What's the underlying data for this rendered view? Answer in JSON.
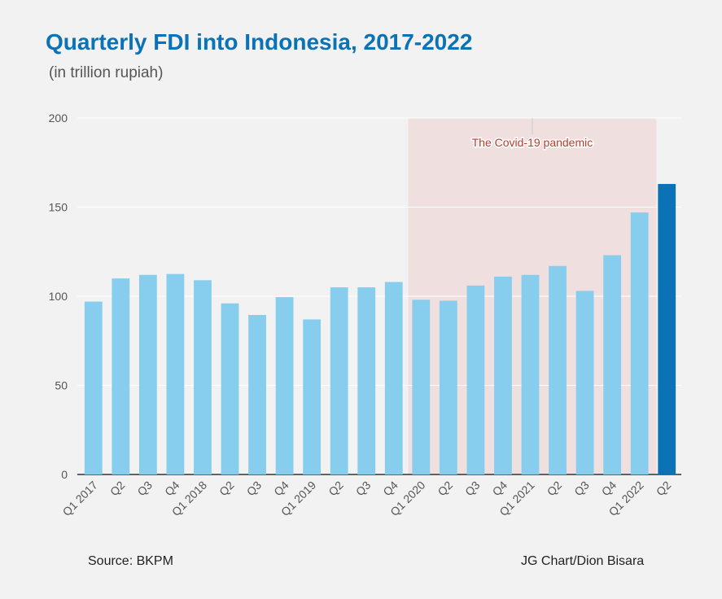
{
  "title": "Quarterly FDI into Indonesia, 2017-2022",
  "subtitle": "(in trillion rupiah)",
  "source": "Source: BKPM",
  "credit": "JG Chart/Dion Bisara",
  "colors": {
    "bar": "#87ceee",
    "highlight": "#0a72b5",
    "shade": "#f0dfdf",
    "annotation": "#c0392b",
    "title": "#0a72b5"
  },
  "chart_data": {
    "type": "bar",
    "categories": [
      "Q1 2017",
      "Q2",
      "Q3",
      "Q4",
      "Q1 2018",
      "Q2",
      "Q3",
      "Q4",
      "Q1 2019",
      "Q2",
      "Q3",
      "Q4",
      "Q1 2020",
      "Q2",
      "Q3",
      "Q4",
      "Q1 2021",
      "Q2",
      "Q3",
      "Q4",
      "Q1 2022",
      "Q2"
    ],
    "values": [
      97,
      110,
      112,
      112.5,
      109,
      96,
      89.5,
      99.5,
      87,
      105,
      105,
      108,
      98,
      97.5,
      106,
      111,
      112,
      117,
      103,
      123,
      147,
      163
    ],
    "highlight_category_index": 21,
    "ylim": [
      0,
      200
    ],
    "yticks": [
      0,
      50,
      100,
      150,
      200
    ],
    "grid": true,
    "xlabel": "",
    "ylabel": "",
    "shaded_region": {
      "from_category_index": 12,
      "to_category_index": 21,
      "label": "The Covid-19 pandemic"
    }
  }
}
